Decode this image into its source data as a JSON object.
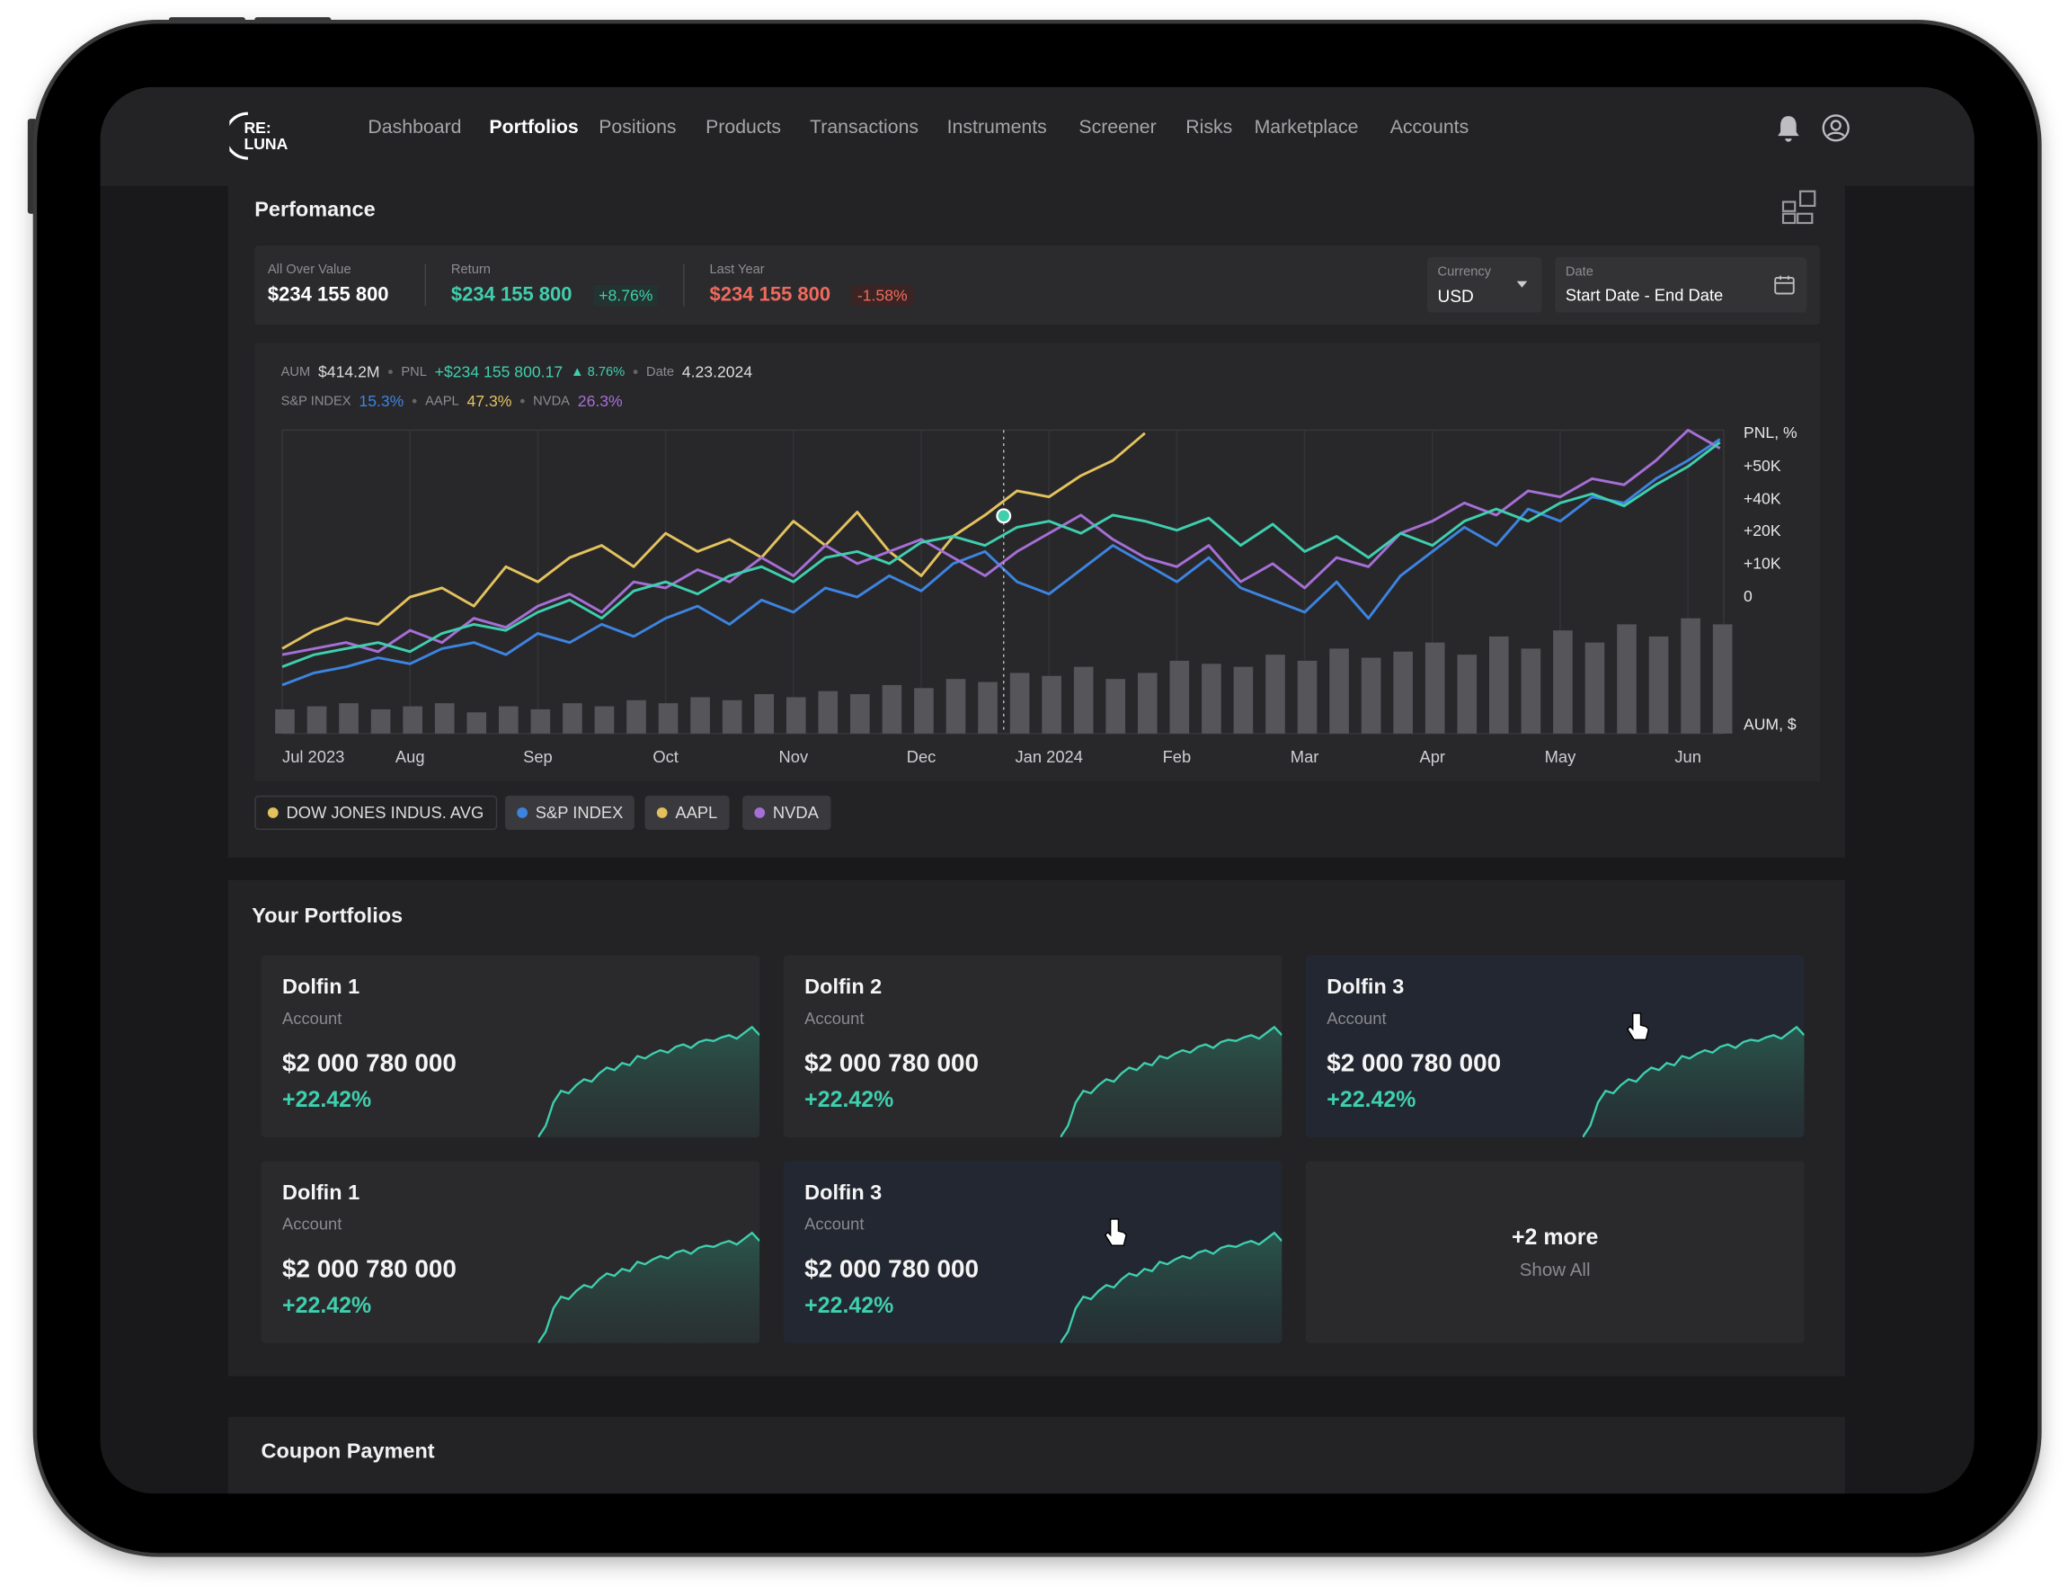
{
  "nav": {
    "logo_top": "RE:",
    "logo_bottom": "LUNA",
    "active": 1,
    "items": [
      "Dashboard",
      "Portfolios",
      "Positions",
      "Products",
      "Transactions",
      "Instruments",
      "Screener",
      "Risks",
      "Marketplace",
      "Accounts"
    ]
  },
  "performance": {
    "title": "Perfomance",
    "stats": [
      {
        "label": "All Over Value",
        "value": "$234 155 800"
      },
      {
        "label": "Return",
        "value": "$234 155 800",
        "change": "+8.76%"
      },
      {
        "label": "Last Year",
        "value": "$234 155 800",
        "change": "-1.58%"
      }
    ],
    "currency": {
      "label": "Currency",
      "value": "USD"
    },
    "date": {
      "label": "Date",
      "value": "Start Date - End Date"
    },
    "info": {
      "aum_label": "AUM",
      "aum": "$414.2M",
      "pnl": "+$234 155 800.17",
      "pnl_change": "8.76%",
      "date_label": "Date",
      "date": "4.23.2024",
      "index_values": [
        "15.3%",
        "47.3%",
        "26.3%"
      ]
    }
  },
  "chart_data": {
    "type": "line",
    "x": [
      0,
      0.25,
      0.5,
      0.75,
      1,
      1.25,
      1.5,
      1.75,
      2,
      2.25,
      2.5,
      2.75,
      3,
      3.25,
      3.5,
      3.75,
      4,
      4.25,
      4.5,
      4.75,
      5,
      5.25,
      5.5,
      5.75,
      6,
      6.25,
      6.5,
      6.75,
      7,
      7.25,
      7.5,
      7.75,
      8,
      8.25,
      8.5,
      8.75,
      9,
      9.25,
      9.5,
      9.75,
      10,
      10.25,
      10.5,
      10.75,
      11,
      11.25
    ],
    "xlim": [
      0,
      11.28
    ],
    "xticks": [
      {
        "value": 0,
        "label": "Jul 2023"
      },
      {
        "value": 1,
        "label": "Aug"
      },
      {
        "value": 2,
        "label": "Sep"
      },
      {
        "value": 3,
        "label": "Oct"
      },
      {
        "value": 4,
        "label": "Nov"
      },
      {
        "value": 5,
        "label": "Dec"
      },
      {
        "value": 6,
        "label": "Jan 2024"
      },
      {
        "value": 7,
        "label": "Feb"
      },
      {
        "value": 8,
        "label": "Mar"
      },
      {
        "value": 9,
        "label": "Apr"
      },
      {
        "value": 10,
        "label": "May"
      },
      {
        "value": 11,
        "label": "Jun"
      }
    ],
    "ylim": [
      0,
      100
    ],
    "axis_labels": [
      "PNL, %",
      "+50K",
      "+40K",
      "+20K",
      "+10K",
      "0",
      "AUM, $"
    ],
    "series": [
      {
        "name": "DOW JONES INDUS. AVG",
        "color": "#e3c25e",
        "values": [
          28,
          34,
          38,
          36,
          45,
          48,
          42,
          55,
          50,
          58,
          62,
          55,
          66,
          60,
          64,
          58,
          70,
          62,
          73,
          60,
          52,
          65,
          72,
          80,
          78,
          85,
          90,
          99,
          null,
          null,
          null,
          null,
          null,
          null,
          null,
          null,
          null,
          null,
          null,
          null,
          null,
          null,
          null,
          null,
          null,
          null
        ]
      },
      {
        "name": "S&P INDEX",
        "color": "#3d84e0",
        "values": [
          16,
          20,
          22,
          25,
          23,
          28,
          30,
          26,
          33,
          30,
          36,
          32,
          38,
          42,
          36,
          44,
          40,
          48,
          45,
          52,
          47,
          56,
          60,
          50,
          46,
          54,
          62,
          56,
          50,
          58,
          48,
          44,
          40,
          50,
          38,
          52,
          60,
          68,
          62,
          74,
          70,
          78,
          76,
          84,
          90,
          97
        ]
      },
      {
        "name": "AAPL",
        "color": "#e3c25e",
        "values": [
          null,
          null,
          null,
          null,
          null,
          null,
          null,
          null,
          null,
          null,
          null,
          null,
          null,
          null,
          null,
          null,
          null,
          null,
          null,
          null,
          null,
          null,
          null,
          null,
          null,
          null,
          null,
          null,
          null,
          null,
          null,
          null,
          null,
          null,
          null,
          null,
          null,
          null,
          null,
          null,
          null,
          null,
          null,
          null,
          null,
          null
        ]
      },
      {
        "name": "NVDA",
        "color": "#a66fd6",
        "values": [
          26,
          28,
          30,
          27,
          34,
          30,
          38,
          35,
          42,
          46,
          40,
          50,
          48,
          54,
          50,
          58,
          52,
          62,
          56,
          60,
          64,
          58,
          52,
          60,
          66,
          72,
          64,
          58,
          55,
          62,
          50,
          56,
          48,
          58,
          55,
          66,
          70,
          76,
          72,
          80,
          78,
          84,
          82,
          90,
          100,
          94
        ]
      },
      {
        "name": "PNL",
        "color": "#3fcfae",
        "values": [
          22,
          26,
          28,
          30,
          27,
          33,
          36,
          34,
          40,
          44,
          38,
          47,
          50,
          46,
          52,
          55,
          50,
          58,
          60,
          56,
          63,
          65,
          62,
          68,
          70,
          66,
          72,
          70,
          67,
          71,
          62,
          69,
          60,
          65,
          58,
          66,
          62,
          70,
          74,
          70,
          76,
          79,
          75,
          82,
          88,
          96
        ]
      }
    ],
    "bars": {
      "color": "#56565a",
      "values": [
        8,
        9,
        10,
        8,
        9,
        10,
        7,
        9,
        8,
        10,
        9,
        11,
        10,
        12,
        11,
        13,
        12,
        14,
        13,
        16,
        15,
        18,
        17,
        20,
        19,
        22,
        18,
        20,
        24,
        23,
        22,
        26,
        24,
        28,
        25,
        27,
        30,
        26,
        32,
        28,
        34,
        30,
        36,
        32,
        38,
        36
      ]
    }
  },
  "portfolios": {
    "title": "Your Portfolios",
    "trend": {
      "ylim": [
        0,
        100
      ],
      "values": [
        0,
        10,
        30,
        40,
        38,
        45,
        50,
        48,
        55,
        60,
        58,
        64,
        62,
        70,
        68,
        72,
        75,
        73,
        78,
        80,
        77,
        82,
        84,
        83,
        86,
        88,
        85,
        90,
        95,
        88
      ]
    },
    "cards": [
      {
        "name": "Dolfin 1",
        "sub": "Account",
        "value": "$2 000 780 000",
        "change": "+22.42%",
        "hover": false
      },
      {
        "name": "Dolfin 2",
        "sub": "Account",
        "value": "$2 000 780 000",
        "change": "+22.42%",
        "hover": false
      },
      {
        "name": "Dolfin 3",
        "sub": "Account",
        "value": "$2 000 780 000",
        "change": "+22.42%",
        "hover": true
      },
      {
        "name": "Dolfin 1",
        "sub": "Account",
        "value": "$2 000 780 000",
        "change": "+22.42%",
        "hover": false
      },
      {
        "name": "Dolfin 3",
        "sub": "Account",
        "value": "$2 000 780 000",
        "change": "+22.42%",
        "hover": true
      }
    ],
    "more": {
      "count": "+2 more",
      "action": "Show All"
    }
  },
  "coupon": {
    "title": "Coupon Payment"
  }
}
